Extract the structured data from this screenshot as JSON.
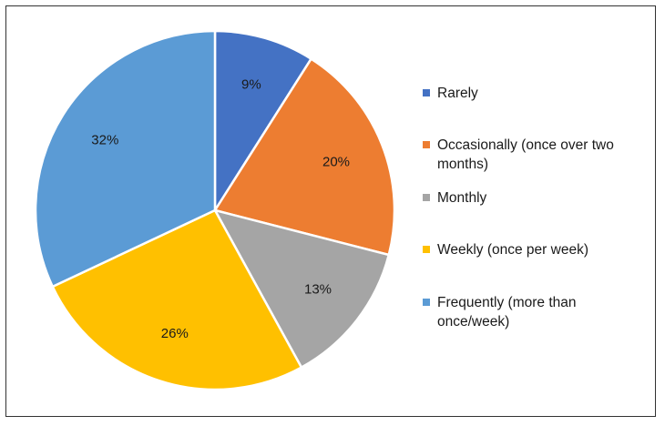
{
  "chart_data": {
    "type": "pie",
    "title": "",
    "start_angle_deg": 0,
    "direction": "clockwise",
    "legend_position": "right",
    "slices": [
      {
        "label": "Rarely",
        "value": 9,
        "value_label": "9%",
        "color": "#4472C4"
      },
      {
        "label": "Occasionally (once over two months)",
        "value": 20,
        "value_label": "20%",
        "color": "#ED7D31"
      },
      {
        "label": "Monthly",
        "value": 13,
        "value_label": "13%",
        "color": "#A5A5A5"
      },
      {
        "label": "Weekly (once per week)",
        "value": 26,
        "value_label": "26%",
        "color": "#FFC000"
      },
      {
        "label": "Frequently (more than once/week)",
        "value": 32,
        "value_label": "32%",
        "color": "#5B9BD5"
      }
    ]
  }
}
